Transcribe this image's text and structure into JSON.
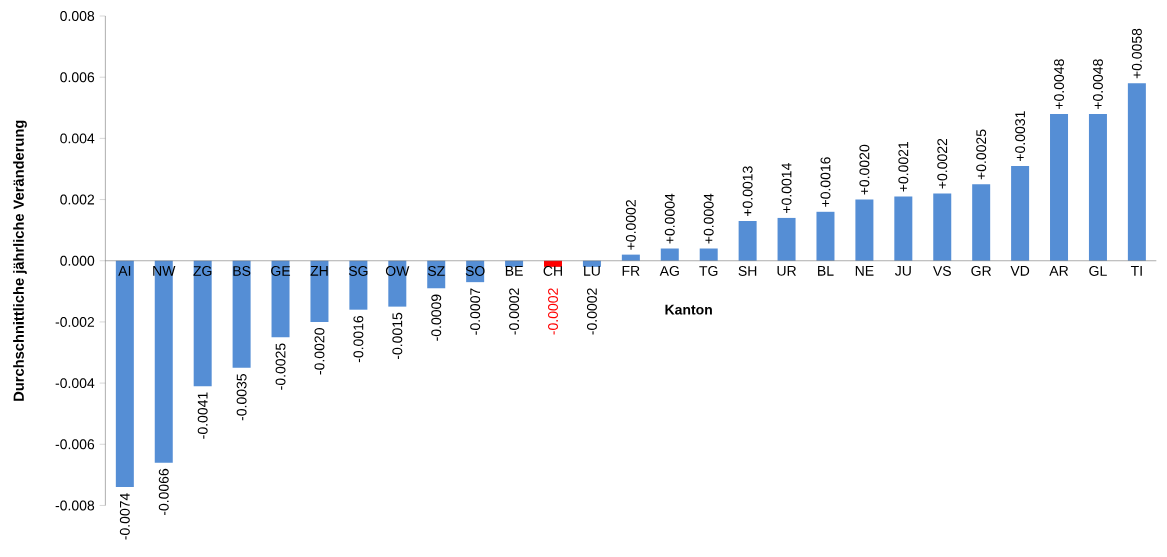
{
  "chart_data": {
    "type": "bar",
    "xlabel": "Kanton",
    "ylabel": "Durchschnittliche jährliche Veränderung",
    "categories": [
      "AI",
      "NW",
      "ZG",
      "BS",
      "GE",
      "ZH",
      "SG",
      "OW",
      "SZ",
      "SO",
      "BE",
      "CH",
      "LU",
      "FR",
      "AG",
      "TG",
      "SH",
      "UR",
      "BL",
      "NE",
      "JU",
      "VS",
      "GR",
      "VD",
      "AR",
      "GL",
      "TI"
    ],
    "values": [
      -0.0074,
      -0.0066,
      -0.0041,
      -0.0035,
      -0.0025,
      -0.002,
      -0.0016,
      -0.0015,
      -0.0009,
      -0.0007,
      -0.0002,
      -0.0002,
      -0.0002,
      0.0002,
      0.0004,
      0.0004,
      0.0013,
      0.0014,
      0.0016,
      0.002,
      0.0021,
      0.0022,
      0.0025,
      0.0031,
      0.0048,
      0.0048,
      0.0058
    ],
    "value_labels": [
      "-0.0074",
      "-0.0066",
      "-0.0041",
      "-0.0035",
      "-0.0025",
      "-0.0020",
      "-0.0016",
      "-0.0015",
      "-0.0009",
      "-0.0007",
      "-0.0002",
      "-0.0002",
      "-0.0002",
      "+0.0002",
      "+0.0004",
      "+0.0004",
      "+0.0013",
      "+0.0014",
      "+0.0016",
      "+0.0020",
      "+0.0021",
      "+0.0022",
      "+0.0025",
      "+0.0031",
      "+0.0048",
      "+0.0048",
      "+0.0058"
    ],
    "colors": [
      "#558ed5",
      "#558ed5",
      "#558ed5",
      "#558ed5",
      "#558ed5",
      "#558ed5",
      "#558ed5",
      "#558ed5",
      "#558ed5",
      "#558ed5",
      "#558ed5",
      "#ff0000",
      "#558ed5",
      "#558ed5",
      "#558ed5",
      "#558ed5",
      "#558ed5",
      "#558ed5",
      "#558ed5",
      "#558ed5",
      "#558ed5",
      "#558ed5",
      "#558ed5",
      "#558ed5",
      "#558ed5",
      "#558ed5",
      "#558ed5"
    ],
    "ylim": [
      -0.008,
      0.008
    ],
    "yticks": [
      -0.008,
      -0.006,
      -0.004,
      -0.002,
      {
        "value": 0,
        "label": "0.000"
      },
      0.002,
      0.004,
      0.006,
      0.008
    ],
    "grid": false
  }
}
